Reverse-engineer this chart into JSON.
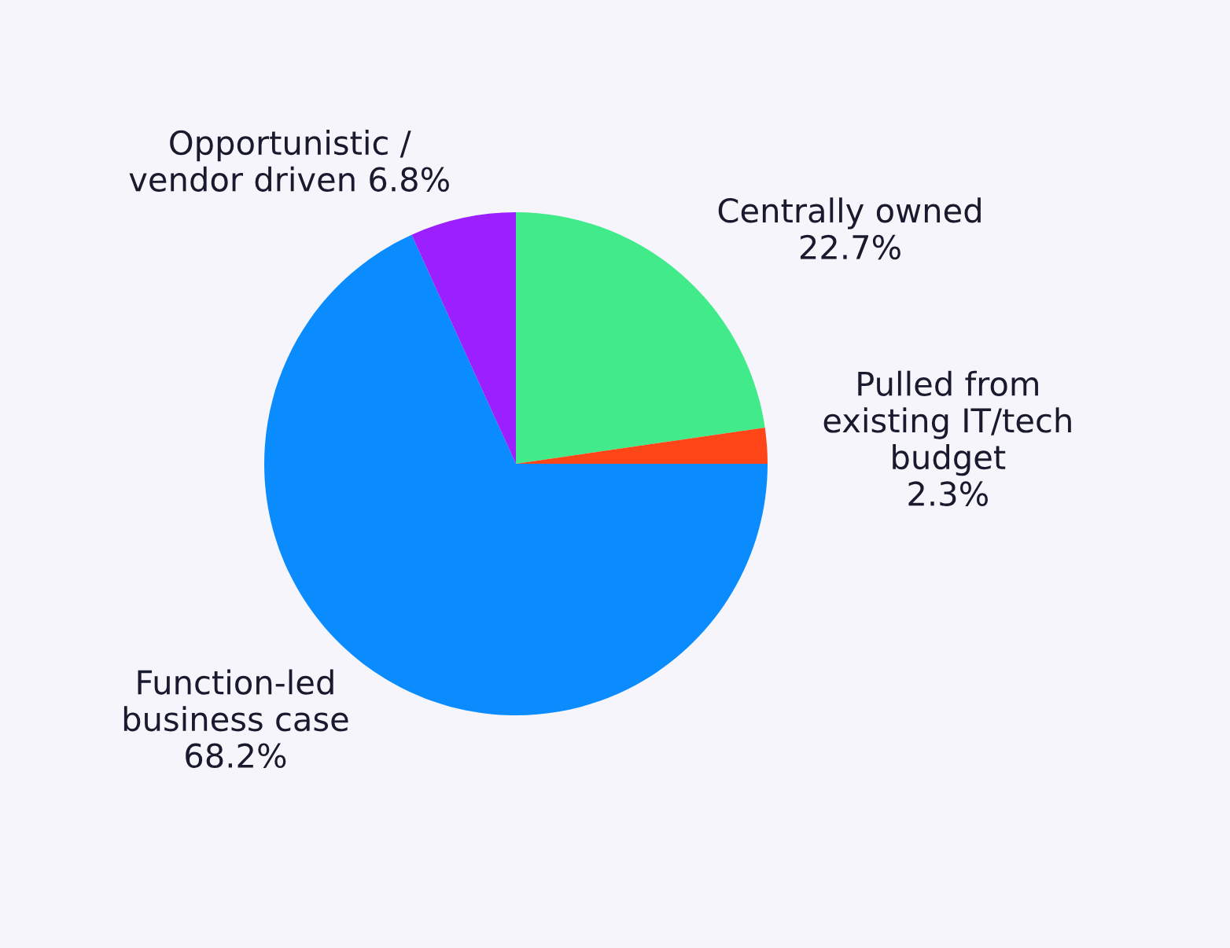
{
  "chart_data": {
    "type": "pie",
    "categories": [
      "Centrally owned\n22.7%",
      "Pulled from\nexisting IT/tech\nbudget\n2.3%",
      "Function-led\nbusiness case\n68.2%",
      "Opportunistic /\nvendor driven 6.8%"
    ],
    "values": [
      22.7,
      2.3,
      68.2,
      6.8
    ],
    "colors": [
      "#41eb8a",
      "#ff4619",
      "#0a8cff",
      "#9b1fff"
    ]
  }
}
